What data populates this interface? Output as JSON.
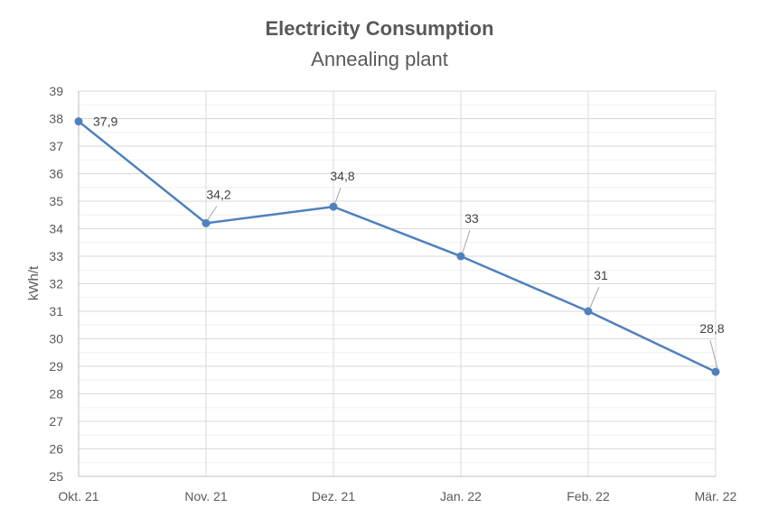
{
  "chart_data": {
    "type": "line",
    "title": "Electricity Consumption",
    "subtitle": "Annealing plant",
    "xlabel": "",
    "ylabel": "kWh/t",
    "categories": [
      "Okt. 21",
      "Nov. 21",
      "Dez. 21",
      "Jan. 22",
      "Feb. 22",
      "Mär. 22"
    ],
    "series": [
      {
        "values": [
          37.9,
          34.2,
          34.8,
          33,
          31,
          28.8
        ],
        "labels": [
          "37,9",
          "34,2",
          "34,8",
          "33",
          "31",
          "28,8"
        ]
      }
    ],
    "ylim": [
      25,
      39
    ],
    "yticks": [
      "25",
      "26",
      "27",
      "28",
      "29",
      "30",
      "31",
      "32",
      "33",
      "34",
      "35",
      "36",
      "37",
      "38",
      "39"
    ],
    "grid": true,
    "legend": "none",
    "colors": {
      "series": "#4f81bd"
    }
  }
}
